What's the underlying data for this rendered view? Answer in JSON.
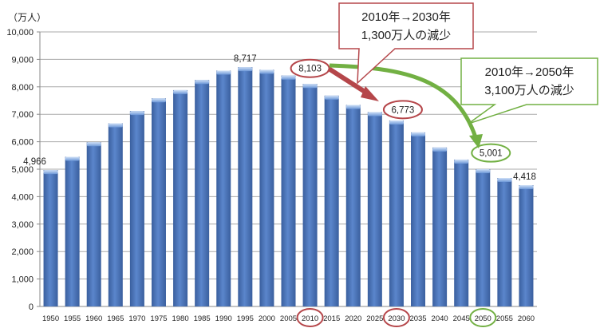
{
  "chart_data": {
    "type": "bar",
    "unit_label": "（万人）",
    "categories": [
      "1950",
      "1955",
      "1960",
      "1965",
      "1970",
      "1975",
      "1980",
      "1985",
      "1990",
      "1995",
      "2000",
      "2005",
      "2010",
      "2015",
      "2020",
      "2025",
      "2030",
      "2035",
      "2040",
      "2045",
      "2050",
      "2055",
      "2060"
    ],
    "values": [
      4966,
      5450,
      5980,
      6670,
      7120,
      7580,
      7880,
      8250,
      8590,
      8717,
      8620,
      8410,
      8103,
      7680,
      7340,
      7080,
      6773,
      6340,
      5790,
      5350,
      5001,
      4680,
      4418
    ],
    "data_labels": {
      "1950": "4,966",
      "1995": "8,717",
      "2010": "8,103",
      "2030": "6,773",
      "2050": "5,001",
      "2060": "4,418"
    },
    "yticks": [
      "0",
      "1,000",
      "2,000",
      "3,000",
      "4,000",
      "5,000",
      "6,000",
      "7,000",
      "8,000",
      "9,000",
      "10,000"
    ],
    "ylim": [
      0,
      10000
    ],
    "grid": true,
    "bar_color": "#4a72b8",
    "highlighted": {
      "2010": "#b5464a",
      "2030": "#b5464a",
      "2050": "#72b043"
    },
    "annotations": [
      {
        "line1": "2010年→2030年",
        "line2": "1,300万人の減少",
        "color": "#b5464a"
      },
      {
        "line1": "2010年→2050年",
        "line2": "3,100万人の減少",
        "color": "#72b043"
      }
    ]
  }
}
